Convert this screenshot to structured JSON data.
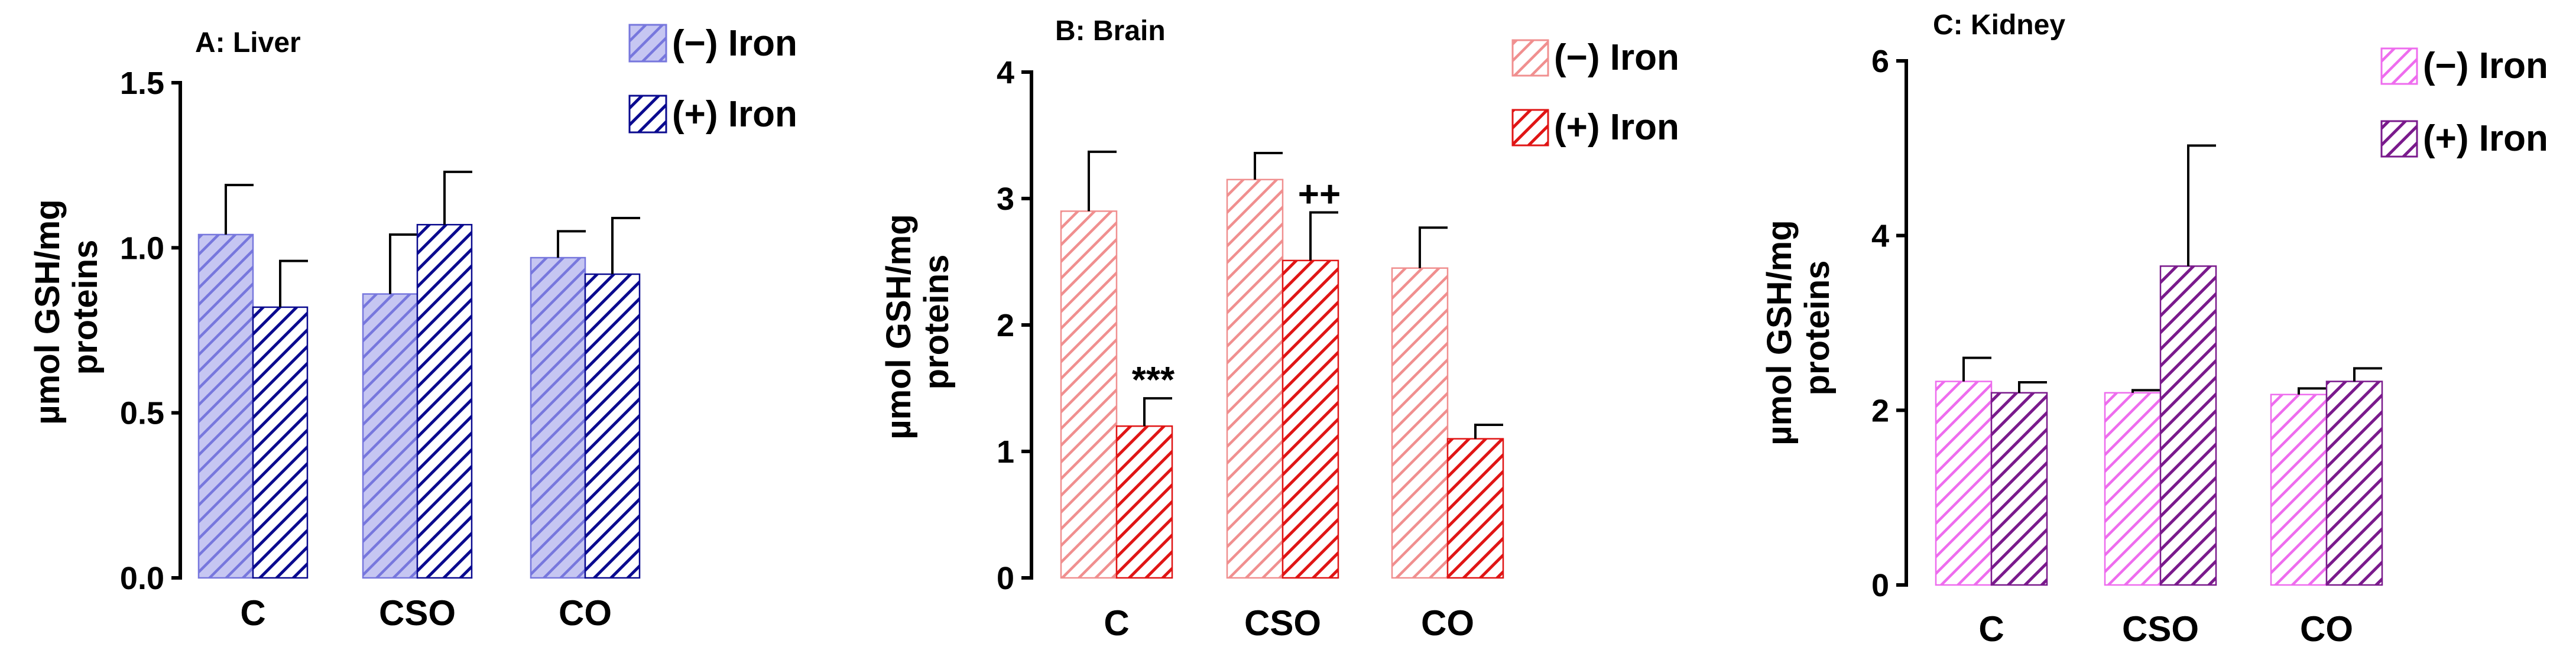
{
  "chart_data": [
    {
      "type": "bar",
      "title": "A: Liver",
      "ylabel": "µmol GSH/mg proteins",
      "ylabel_lines": [
        "µmol GSH/mg",
        "proteins"
      ],
      "categories": [
        "C",
        "CSO",
        "CO"
      ],
      "ylim": [
        0,
        1.5
      ],
      "yticks": [
        0.0,
        0.5,
        1.0,
        1.5
      ],
      "ytick_labels": [
        "0.0",
        "0.5",
        "1.0",
        "1.5"
      ],
      "legend_position": "top-right",
      "series": [
        {
          "name": "(−) Iron",
          "values": [
            1.04,
            0.86,
            0.97
          ],
          "errors": [
            0.15,
            0.18,
            0.08
          ],
          "color": "#7777dd",
          "fill_color": "#c6c6f2"
        },
        {
          "name": "(+) Iron",
          "values": [
            0.82,
            1.07,
            0.92
          ],
          "errors": [
            0.14,
            0.16,
            0.17
          ],
          "color": "#0a0a8f",
          "fill_color": "#ffffff"
        }
      ],
      "annotations": []
    },
    {
      "type": "bar",
      "title": "B: Brain",
      "ylabel": "µmol GSH/mg proteins",
      "ylabel_lines": [
        "µmol GSH/mg",
        "proteins"
      ],
      "categories": [
        "C",
        "CSO",
        "CO"
      ],
      "ylim": [
        0,
        4
      ],
      "yticks": [
        0,
        1,
        2,
        3,
        4
      ],
      "ytick_labels": [
        "0",
        "1",
        "2",
        "3",
        "4"
      ],
      "legend_position": "top-right",
      "series": [
        {
          "name": "(−) Iron",
          "values": [
            2.9,
            3.15,
            2.45
          ],
          "errors": [
            0.47,
            0.21,
            0.32
          ],
          "color": "#f08f8f",
          "fill_color": "#ffffff"
        },
        {
          "name": "(+) Iron",
          "values": [
            1.2,
            2.51,
            1.1
          ],
          "errors": [
            0.22,
            0.38,
            0.11
          ],
          "color": "#e01515",
          "fill_color": "#ffffff"
        }
      ],
      "annotations": [
        {
          "text": "***",
          "category": "C",
          "series": 1
        },
        {
          "text": "++",
          "category": "CSO",
          "series": 1
        }
      ]
    },
    {
      "type": "bar",
      "title": "C: Kidney",
      "ylabel": "µmol GSH/mg proteins",
      "ylabel_lines": [
        "µmol GSH/mg",
        "proteins"
      ],
      "categories": [
        "C",
        "CSO",
        "CO"
      ],
      "ylim": [
        0,
        6
      ],
      "yticks": [
        0,
        2,
        4,
        6
      ],
      "ytick_labels": [
        "0",
        "2",
        "4",
        "6"
      ],
      "legend_position": "top-right",
      "series": [
        {
          "name": "(−) Iron",
          "values": [
            2.33,
            2.2,
            2.18
          ],
          "errors": [
            0.27,
            0.03,
            0.07
          ],
          "color": "#ee6cee",
          "fill_color": "#ffffff"
        },
        {
          "name": "(+) Iron",
          "values": [
            2.2,
            3.65,
            2.33
          ],
          "errors": [
            0.12,
            1.38,
            0.15
          ],
          "color": "#7a1a8c",
          "fill_color": "#ffffff"
        }
      ],
      "annotations": []
    }
  ]
}
